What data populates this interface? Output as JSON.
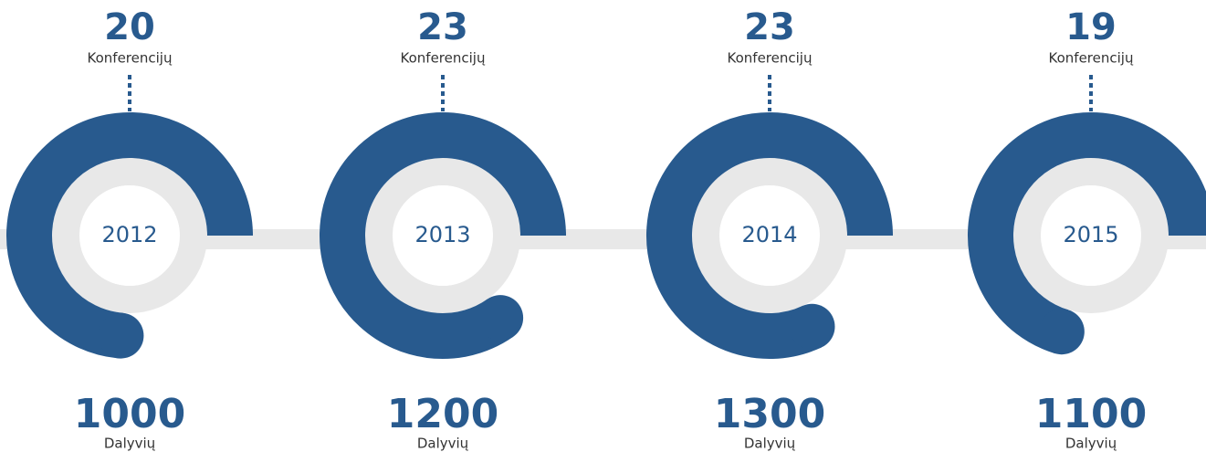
{
  "items": [
    {
      "year": "2012",
      "conferences": "20",
      "conferences_label": "Konferencijų",
      "participants": "1000",
      "participants_label": "Dalyvių"
    },
    {
      "year": "2013",
      "conferences": "23",
      "conferences_label": "Konferencijų",
      "participants": "1200",
      "participants_label": "Dalyvių"
    },
    {
      "year": "2014",
      "conferences": "23",
      "conferences_label": "Konferencijų",
      "participants": "1300",
      "participants_label": "Dalyvių"
    },
    {
      "year": "2015",
      "conferences": "19",
      "conferences_label": "Konferencijų",
      "participants": "1100",
      "participants_label": "Dalyvių"
    }
  ]
}
